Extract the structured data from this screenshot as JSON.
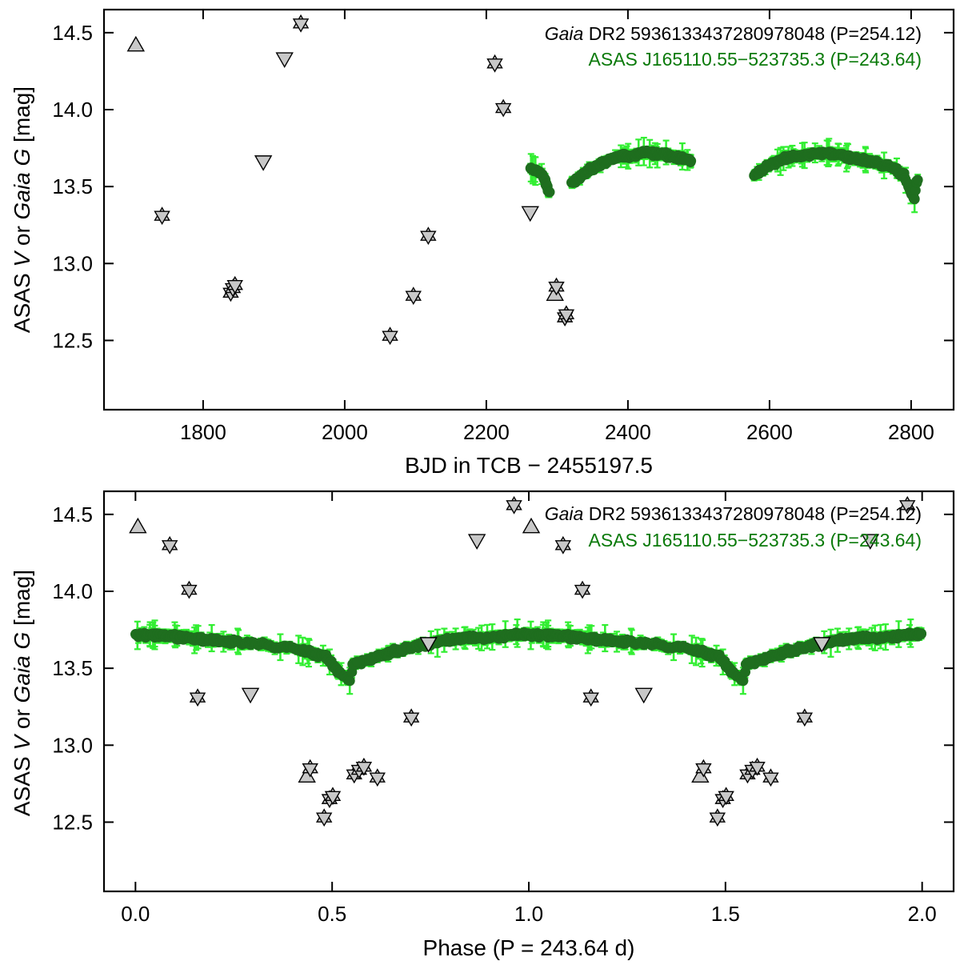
{
  "colors": {
    "asas_fill": "#1f6e1f",
    "asas_error": "#33ee33",
    "gaia_fill": "#c8c8c8",
    "gaia_stroke": "#000000",
    "legend_gaia": "#000000",
    "legend_asas": "#0a7a0a"
  },
  "chart_data": [
    {
      "type": "scatter",
      "panel": "top",
      "xlabel": "BJD in TCB − 2455197.5",
      "ylabel": {
        "p1": "ASAS ",
        "p2": "V",
        "p3": " or  ",
        "p4": "Gaia G",
        "p5": "  [mag]"
      },
      "xlim": [
        1660,
        2860
      ],
      "ylim": [
        14.65,
        12.05
      ],
      "y_inverted": true,
      "xticks": [
        1800,
        2000,
        2200,
        2400,
        2600,
        2800
      ],
      "xtick_labels": [
        "1800",
        "2000",
        "2200",
        "2400",
        "2600",
        "2800"
      ],
      "yticks": [
        12.5,
        13.0,
        13.5,
        14.0,
        14.5
      ],
      "ytick_labels": [
        "12.5",
        "13.0",
        "13.5",
        "14.0",
        "14.5"
      ],
      "legend": {
        "gaia_italic": "Gaia",
        "gaia_rest": " DR2 5936133437280978048 (P=254.12)",
        "asas": "ASAS J165110.55−523735.3 (P=243.64)",
        "placement": "top-right"
      },
      "gaia_points": [
        {
          "x": 1705,
          "y": 14.42,
          "m": "up"
        },
        {
          "x": 1742,
          "y": 13.31,
          "m": "star"
        },
        {
          "x": 1839,
          "y": 12.81,
          "m": "star"
        },
        {
          "x": 1842,
          "y": 12.84,
          "m": "star"
        },
        {
          "x": 1845,
          "y": 12.86,
          "m": "star"
        },
        {
          "x": 1885,
          "y": 13.66,
          "m": "down"
        },
        {
          "x": 1915,
          "y": 14.33,
          "m": "down"
        },
        {
          "x": 1938,
          "y": 14.56,
          "m": "star"
        },
        {
          "x": 2064,
          "y": 12.53,
          "m": "star"
        },
        {
          "x": 2097,
          "y": 12.79,
          "m": "star"
        },
        {
          "x": 2118,
          "y": 13.18,
          "m": "star"
        },
        {
          "x": 2212,
          "y": 14.3,
          "m": "star"
        },
        {
          "x": 2224,
          "y": 14.01,
          "m": "star"
        },
        {
          "x": 2262,
          "y": 13.33,
          "m": "down"
        },
        {
          "x": 2297,
          "y": 12.8,
          "m": "up"
        },
        {
          "x": 2299,
          "y": 12.85,
          "m": "star"
        },
        {
          "x": 2311,
          "y": 12.65,
          "m": "star"
        },
        {
          "x": 2313,
          "y": 12.67,
          "m": "star"
        }
      ],
      "asas_segments": [
        {
          "t0": 2262,
          "t1": 2290,
          "phase0": 0.41,
          "phase1": 0.526
        },
        {
          "t0": 2320,
          "t1": 2490,
          "phase0": 0.55,
          "phase1": 1.248
        },
        {
          "t0": 2578,
          "t1": 2810,
          "phase0": 0.614,
          "phase1": 1.566
        }
      ]
    },
    {
      "type": "scatter",
      "panel": "bottom",
      "xlabel": "Phase (P = 243.64 d)",
      "ylabel": {
        "p1": "ASAS ",
        "p2": "V",
        "p3": " or  ",
        "p4": "Gaia G",
        "p5": "  [mag]"
      },
      "xlim": [
        -0.08,
        2.08
      ],
      "ylim": [
        14.65,
        12.05
      ],
      "y_inverted": true,
      "xticks": [
        0.0,
        0.5,
        1.0,
        1.5,
        2.0
      ],
      "xtick_labels": [
        "0.0",
        "0.5",
        "1.0",
        "1.5",
        "2.0"
      ],
      "yticks": [
        12.5,
        13.0,
        13.5,
        14.0,
        14.5
      ],
      "ytick_labels": [
        "12.5",
        "13.0",
        "13.5",
        "14.0",
        "14.5"
      ],
      "legend": {
        "gaia_italic": "Gaia",
        "gaia_rest": " DR2 5936133437280978048 (P=254.12)",
        "asas": "ASAS J165110.55−523735.3 (P=243.64)",
        "placement": "top-right"
      },
      "phase_period": 243.64
    }
  ]
}
